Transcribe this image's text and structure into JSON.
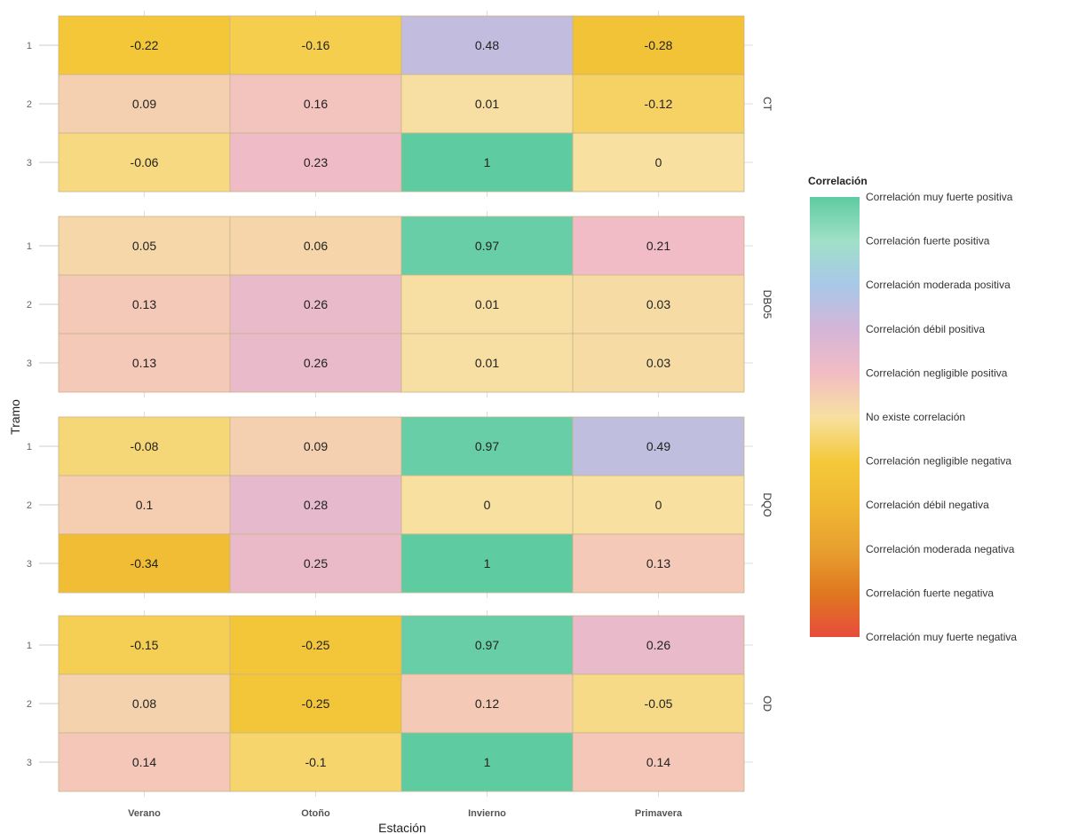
{
  "chart_data": {
    "type": "heatmap",
    "xlabel": "Estación",
    "ylabel": "Tramo",
    "categories": [
      "Verano",
      "Otoño",
      "Invierno",
      "Primavera"
    ],
    "rows": [
      "1",
      "2",
      "3"
    ],
    "facets": [
      {
        "name": "CT",
        "values": [
          [
            -0.22,
            -0.16,
            0.48,
            -0.28
          ],
          [
            0.09,
            0.16,
            0.01,
            -0.12
          ],
          [
            -0.06,
            0.23,
            1,
            0
          ]
        ]
      },
      {
        "name": "DBO5",
        "values": [
          [
            0.05,
            0.06,
            0.97,
            0.21
          ],
          [
            0.13,
            0.26,
            0.01,
            0.03
          ],
          [
            0.13,
            0.26,
            0.01,
            0.03
          ]
        ]
      },
      {
        "name": "DQO",
        "values": [
          [
            -0.08,
            0.09,
            0.97,
            0.49
          ],
          [
            0.1,
            0.28,
            0,
            0
          ],
          [
            -0.34,
            0.25,
            1,
            0.13
          ]
        ]
      },
      {
        "name": "OD",
        "values": [
          [
            -0.15,
            -0.25,
            0.97,
            0.26
          ],
          [
            0.08,
            -0.25,
            0.12,
            -0.05
          ],
          [
            0.14,
            -0.1,
            1,
            0.14
          ]
        ]
      }
    ],
    "legend": {
      "title": "Correlación",
      "position": "right",
      "labels": [
        "Correlación muy fuerte positiva",
        "Correlación fuerte positiva",
        "Correlación moderada positiva",
        "Correlación débil positiva",
        "Correlación negligible positiva",
        "No existe correlación",
        "Correlación negligible negativa",
        "Correlación débil negativa",
        "Correlación moderada negativa",
        "Correlación fuerte negativa",
        "Correlación muy fuerte negativa"
      ]
    },
    "color_scale": {
      "domain": [
        -1,
        -0.8,
        -0.6,
        -0.4,
        -0.2,
        0,
        0.2,
        0.4,
        0.6,
        0.8,
        1
      ],
      "colors": [
        "#e74c3c",
        "#e07820",
        "#e8a030",
        "#f0b832",
        "#f4c93a",
        "#f7e0a0",
        "#f2bcc4",
        "#d4b5d8",
        "#a8c8e8",
        "#a0e0c8",
        "#5ecba1"
      ]
    }
  }
}
